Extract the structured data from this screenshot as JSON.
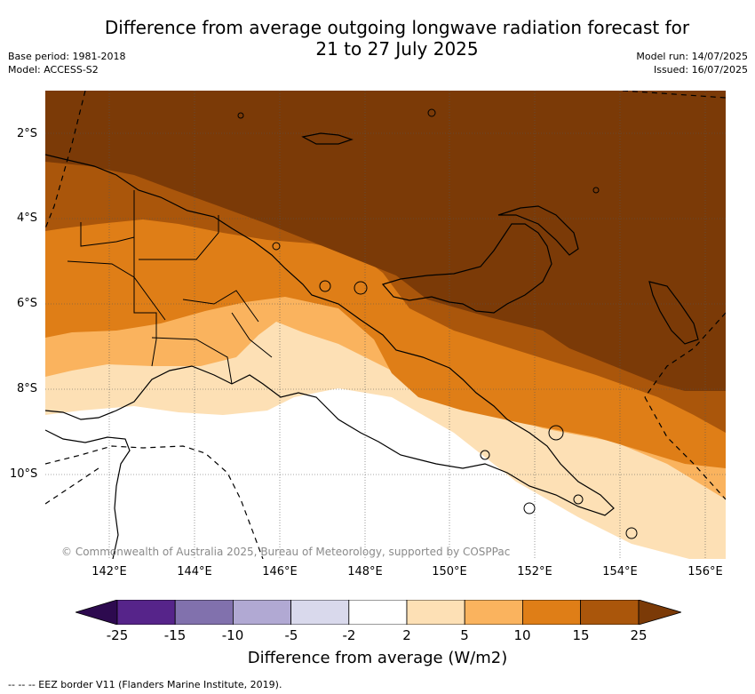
{
  "title": {
    "line1": "Difference from average outgoing longwave radiation forecast for",
    "line2": "21 to 27 July 2025"
  },
  "meta_left": {
    "base_period": "Base period: 1981-2018",
    "model": "Model: ACCESS-S2"
  },
  "meta_right": {
    "model_run": "Model run: 14/07/2025",
    "issued": "Issued: 16/07/2025"
  },
  "map": {
    "copyright": "© Commonwealth of Australia 2025, Bureau of Meteorology, supported by COSPPac",
    "lat_labels": [
      "2°S",
      "4°S",
      "6°S",
      "8°S",
      "10°S"
    ],
    "lon_labels": [
      "142°E",
      "144°E",
      "146°E",
      "148°E",
      "150°E",
      "152°E",
      "154°E",
      "156°E"
    ],
    "colors": {
      "above_25": "#7b3a07",
      "15_to_25": "#aa560b",
      "10_to_15": "#df7e17",
      "5_to_10": "#fab35e",
      "2_to_5": "#fde0b5",
      "neutral": "#ffffff"
    }
  },
  "colorbar": {
    "ticks": [
      "-25",
      "-15",
      "-10",
      "-5",
      "-2",
      "2",
      "5",
      "10",
      "15",
      "25"
    ],
    "colors": [
      "#2d0a4f",
      "#56248a",
      "#8171ad",
      "#b1a9d3",
      "#d9d9ec",
      "#ffffff",
      "#fde0b5",
      "#fab35e",
      "#df7e17",
      "#aa560b",
      "#7b3a07"
    ],
    "label": "Difference from average (W/m2)"
  },
  "footnote": "-- -- -- EEZ border V11 (Flanders Marine Institute, 2019)."
}
